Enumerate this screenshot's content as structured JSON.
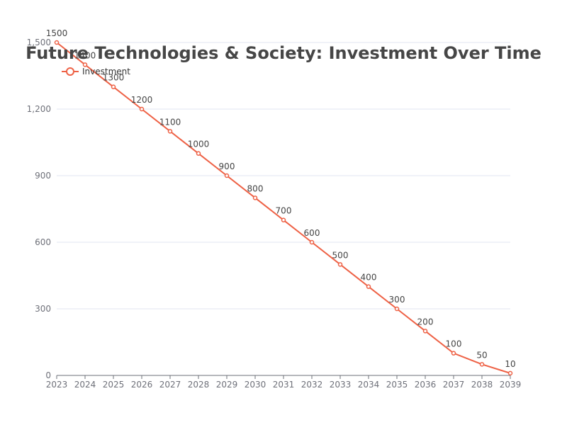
{
  "chart_data": {
    "type": "line",
    "title": "Future Technologies & Society: Investment Over Time",
    "xlabel": "",
    "ylabel": "",
    "categories": [
      "2023",
      "2024",
      "2025",
      "2026",
      "2027",
      "2028",
      "2029",
      "2030",
      "2031",
      "2032",
      "2033",
      "2034",
      "2035",
      "2036",
      "2037",
      "2038",
      "2039"
    ],
    "series": [
      {
        "name": "Investment",
        "values": [
          1500,
          1400,
          1300,
          1200,
          1100,
          1000,
          900,
          800,
          700,
          600,
          500,
          400,
          300,
          200,
          100,
          50,
          10
        ]
      }
    ],
    "ylim": [
      0,
      1500
    ],
    "yticks": [
      "0",
      "300",
      "600",
      "900",
      "1,200",
      "1,500"
    ],
    "ytick_values": [
      0,
      300,
      600,
      900,
      1200,
      1500
    ],
    "grid": true,
    "legend_position": "top-left",
    "color": "#ee6145"
  }
}
